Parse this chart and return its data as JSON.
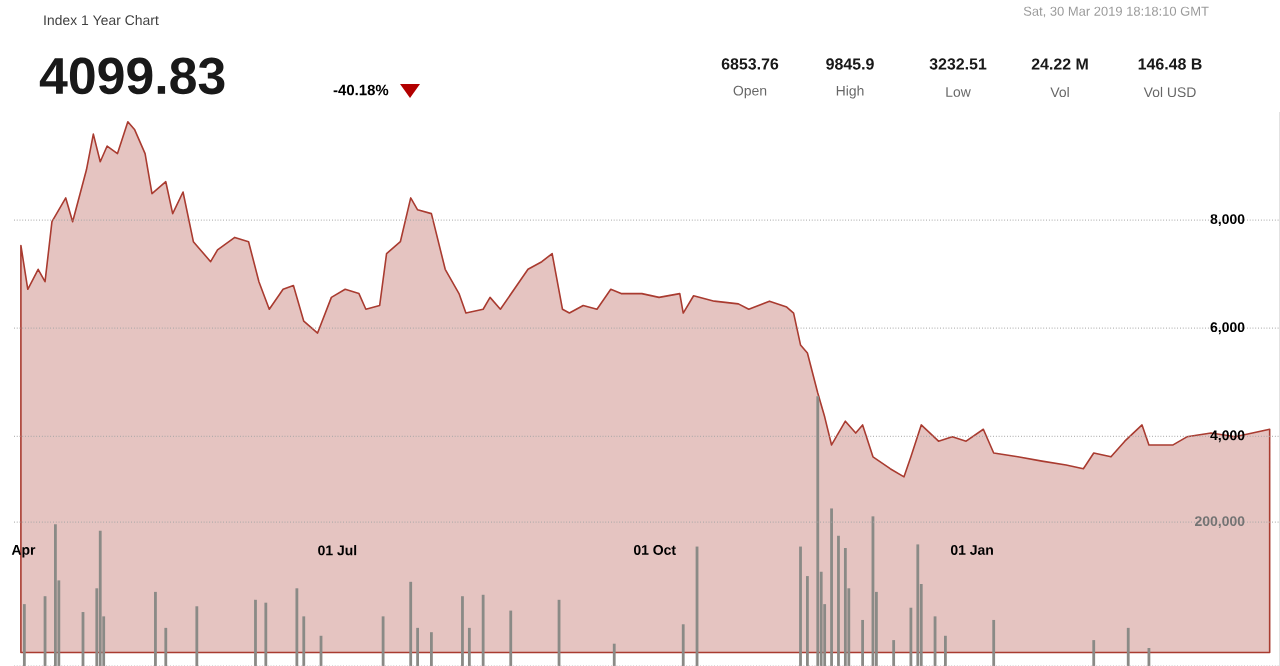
{
  "chart_data": {
    "type": "area",
    "title": "Index 1 Year Chart",
    "annotations": [
      "4099.83",
      "-40.18%",
      "Sat, 30 Mar 2019 18:18:10 GMT",
      "6853.76",
      "Open",
      "9845.9",
      "High",
      "3232.51",
      "Low",
      "24.22 M",
      "Vol",
      "146.48 B",
      "Vol USD"
    ],
    "xlim": [
      "2018-03-31",
      "2019-04-02"
    ],
    "xticks": [
      {
        "value": "2018-04-01",
        "label": "Apr"
      },
      {
        "value": "2018-07-01",
        "label": "01 Jul"
      },
      {
        "value": "2018-10-01",
        "label": "01 Oct"
      },
      {
        "value": "2019-01-01",
        "label": "01 Jan"
      }
    ],
    "ylim": [
      -250,
      10000
    ],
    "yticks": [
      {
        "value": 4000,
        "label": "4,000"
      },
      {
        "value": 6000,
        "label": "6,000"
      },
      {
        "value": 8000,
        "label": "8,000"
      }
    ],
    "y2lim": [
      0,
      770000
    ],
    "y2ticks": [
      {
        "value": 0,
        "label": null
      },
      {
        "value": 200000,
        "label": "200,000"
      }
    ],
    "grid": "y",
    "series": [
      {
        "color": "#a93b30",
        "x": [
          "2018-04-02",
          "2018-04-04",
          "2018-04-07",
          "2018-04-09",
          "2018-04-11",
          "2018-04-15",
          "2018-04-17",
          "2018-04-21",
          "2018-04-23",
          "2018-04-25",
          "2018-04-27",
          "2018-04-30",
          "2018-05-03",
          "2018-05-05",
          "2018-05-08",
          "2018-05-10",
          "2018-05-14",
          "2018-05-16",
          "2018-05-19",
          "2018-05-22",
          "2018-05-27",
          "2018-05-29",
          "2018-06-03",
          "2018-06-07",
          "2018-06-10",
          "2018-06-13",
          "2018-06-17",
          "2018-06-20",
          "2018-06-23",
          "2018-06-27",
          "2018-07-01",
          "2018-07-05",
          "2018-07-09",
          "2018-07-11",
          "2018-07-15",
          "2018-07-17",
          "2018-07-21",
          "2018-07-24",
          "2018-07-26",
          "2018-07-30",
          "2018-08-03",
          "2018-08-07",
          "2018-08-09",
          "2018-08-14",
          "2018-08-16",
          "2018-08-19",
          "2018-08-23",
          "2018-08-27",
          "2018-08-31",
          "2018-09-03",
          "2018-09-06",
          "2018-09-08",
          "2018-09-12",
          "2018-09-16",
          "2018-09-20",
          "2018-09-23",
          "2018-09-29",
          "2018-10-04",
          "2018-10-10",
          "2018-10-11",
          "2018-10-14",
          "2018-10-20",
          "2018-10-27",
          "2018-10-30",
          "2018-11-05",
          "2018-11-10",
          "2018-11-12",
          "2018-11-14",
          "2018-11-16",
          "2018-11-19",
          "2018-11-21",
          "2018-11-23",
          "2018-11-27",
          "2018-11-30",
          "2018-12-02",
          "2018-12-05",
          "2018-12-10",
          "2018-12-14",
          "2018-12-16",
          "2018-12-19",
          "2018-12-24",
          "2018-12-28",
          "2019-01-01",
          "2019-01-06",
          "2019-01-09",
          "2019-01-16",
          "2019-01-23",
          "2019-01-30",
          "2019-02-04",
          "2019-02-07",
          "2019-02-12",
          "2019-02-16",
          "2019-02-21",
          "2019-02-23",
          "2019-03-02",
          "2019-03-06",
          "2019-03-13",
          "2019-03-20",
          "2019-03-25",
          "2019-03-30"
        ],
        "values": [
          7530,
          6720,
          7090,
          6860,
          7970,
          8410,
          7970,
          8930,
          9590,
          9080,
          9370,
          9230,
          9820,
          9670,
          9230,
          8490,
          8710,
          8120,
          8520,
          7600,
          7230,
          7450,
          7680,
          7600,
          6860,
          6350,
          6720,
          6790,
          6130,
          5910,
          6570,
          6720,
          6640,
          6350,
          6420,
          7380,
          7600,
          8410,
          8190,
          8120,
          7090,
          6640,
          6280,
          6350,
          6570,
          6350,
          6720,
          7090,
          7230,
          7380,
          6350,
          6280,
          6420,
          6350,
          6720,
          6640,
          6640,
          6570,
          6640,
          6280,
          6600,
          6500,
          6450,
          6350,
          6500,
          6390,
          6280,
          5690,
          5540,
          4800,
          4360,
          3840,
          4280,
          4060,
          4210,
          3620,
          3400,
          3250,
          3620,
          4210,
          3910,
          3990,
          3910,
          4130,
          3690,
          3620,
          3540,
          3470,
          3400,
          3690,
          3620,
          3910,
          4210,
          3840,
          3840,
          3990,
          4060,
          3990,
          4060,
          4130
        ]
      },
      {
        "type": "bar",
        "axis": "y2",
        "color": "#8a8a86",
        "x": [
          "2018-04-03",
          "2018-04-09",
          "2018-04-12",
          "2018-04-13",
          "2018-04-20",
          "2018-04-24",
          "2018-04-25",
          "2018-04-26",
          "2018-05-11",
          "2018-05-14",
          "2018-05-23",
          "2018-06-09",
          "2018-06-12",
          "2018-06-21",
          "2018-06-23",
          "2018-06-28",
          "2018-07-16",
          "2018-07-24",
          "2018-07-26",
          "2018-07-30",
          "2018-08-08",
          "2018-08-10",
          "2018-08-14",
          "2018-08-22",
          "2018-09-05",
          "2018-09-21",
          "2018-10-11",
          "2018-10-15",
          "2018-11-14",
          "2018-11-16",
          "2018-11-19",
          "2018-11-20",
          "2018-11-21",
          "2018-11-23",
          "2018-11-25",
          "2018-11-27",
          "2018-11-28",
          "2018-12-02",
          "2018-12-05",
          "2018-12-06",
          "2018-12-11",
          "2018-12-16",
          "2018-12-18",
          "2018-12-19",
          "2018-12-23",
          "2018-12-26",
          "2019-01-09",
          "2019-02-07",
          "2019-02-17",
          "2019-02-23"
        ],
        "values": [
          86000,
          97000,
          197000,
          119000,
          75000,
          108000,
          188000,
          69000,
          103000,
          53000,
          83000,
          92000,
          88000,
          108000,
          69000,
          42000,
          69000,
          117000,
          53000,
          47000,
          97000,
          53000,
          99000,
          77000,
          92000,
          31000,
          58000,
          166000,
          166000,
          125000,
          375000,
          131000,
          86000,
          219000,
          181000,
          164000,
          108000,
          64000,
          208000,
          103000,
          36000,
          81000,
          169000,
          114000,
          69000,
          42000,
          64000,
          36000,
          53000,
          25000
        ]
      }
    ]
  }
}
